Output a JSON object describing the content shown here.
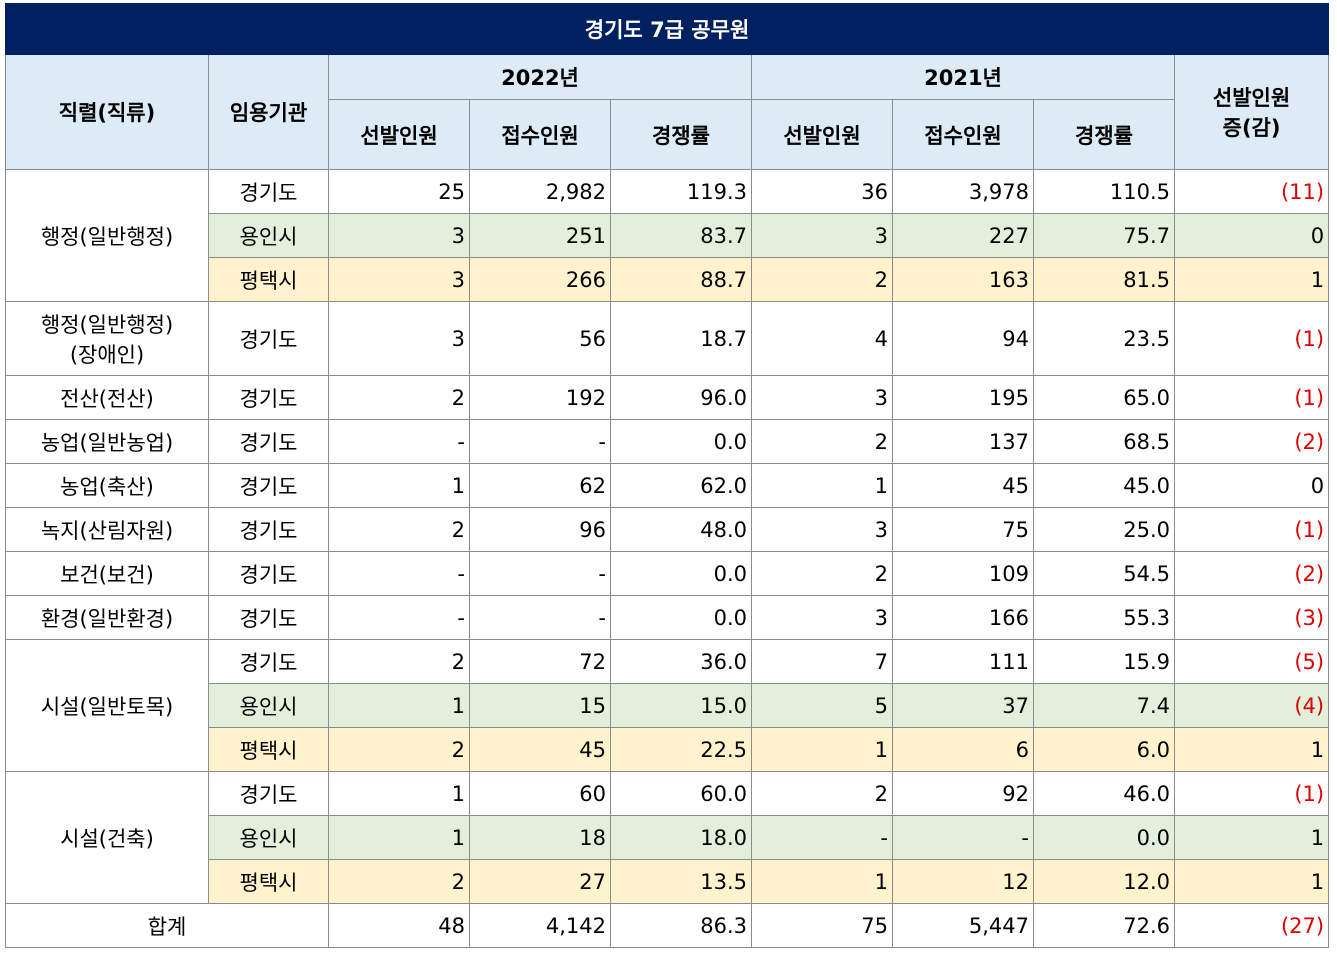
{
  "title": "경기도 7급 공무원",
  "header": {
    "job": "직렬(직류)",
    "agency": "임용기관",
    "year_a": "2022년",
    "year_b": "2021년",
    "change": [
      "선발인원",
      "증(감)"
    ],
    "sub": [
      "선발인원",
      "접수인원",
      "경쟁률",
      "선발인원",
      "접수인원",
      "경쟁률"
    ]
  },
  "groups": [
    {
      "name": [
        "행정(일반행정)"
      ],
      "rows": [
        [
          "경기도",
          "25",
          "2,982",
          "119.3",
          "36",
          "3,978",
          "110.5",
          "(11)"
        ],
        [
          "용인시",
          "3",
          "251",
          "83.7",
          "3",
          "227",
          "75.7",
          "0"
        ],
        [
          "평택시",
          "3",
          "266",
          "88.7",
          "2",
          "163",
          "81.5",
          "1"
        ]
      ]
    },
    {
      "name": [
        "행정(일반행정)",
        "(장애인)"
      ],
      "rows": [
        [
          "경기도",
          "3",
          "56",
          "18.7",
          "4",
          "94",
          "23.5",
          "(1)"
        ]
      ]
    },
    {
      "name": [
        "전산(전산)"
      ],
      "rows": [
        [
          "경기도",
          "2",
          "192",
          "96.0",
          "3",
          "195",
          "65.0",
          "(1)"
        ]
      ]
    },
    {
      "name": [
        "농업(일반농업)"
      ],
      "rows": [
        [
          "경기도",
          "-",
          "-",
          "0.0",
          "2",
          "137",
          "68.5",
          "(2)"
        ]
      ]
    },
    {
      "name": [
        "농업(축산)"
      ],
      "rows": [
        [
          "경기도",
          "1",
          "62",
          "62.0",
          "1",
          "45",
          "45.0",
          "0"
        ]
      ]
    },
    {
      "name": [
        "녹지(산림자원)"
      ],
      "rows": [
        [
          "경기도",
          "2",
          "96",
          "48.0",
          "3",
          "75",
          "25.0",
          "(1)"
        ]
      ]
    },
    {
      "name": [
        "보건(보건)"
      ],
      "rows": [
        [
          "경기도",
          "-",
          "-",
          "0.0",
          "2",
          "109",
          "54.5",
          "(2)"
        ]
      ]
    },
    {
      "name": [
        "환경(일반환경)"
      ],
      "rows": [
        [
          "경기도",
          "-",
          "-",
          "0.0",
          "3",
          "166",
          "55.3",
          "(3)"
        ]
      ]
    },
    {
      "name": [
        "시설(일반토목)"
      ],
      "rows": [
        [
          "경기도",
          "2",
          "72",
          "36.0",
          "7",
          "111",
          "15.9",
          "(5)"
        ],
        [
          "용인시",
          "1",
          "15",
          "15.0",
          "5",
          "37",
          "7.4",
          "(4)"
        ],
        [
          "평택시",
          "2",
          "45",
          "22.5",
          "1",
          "6",
          "6.0",
          "1"
        ]
      ]
    },
    {
      "name": [
        "시설(건축)"
      ],
      "rows": [
        [
          "경기도",
          "1",
          "60",
          "60.0",
          "2",
          "92",
          "46.0",
          "(1)"
        ],
        [
          "용인시",
          "1",
          "18",
          "18.0",
          "-",
          "-",
          "0.0",
          "1"
        ],
        [
          "평택시",
          "2",
          "27",
          "13.5",
          "1",
          "12",
          "12.0",
          "1"
        ]
      ]
    }
  ],
  "total": {
    "label": "합계",
    "values": [
      "48",
      "4,142",
      "86.3",
      "75",
      "5,447",
      "72.6",
      "(27)"
    ]
  }
}
